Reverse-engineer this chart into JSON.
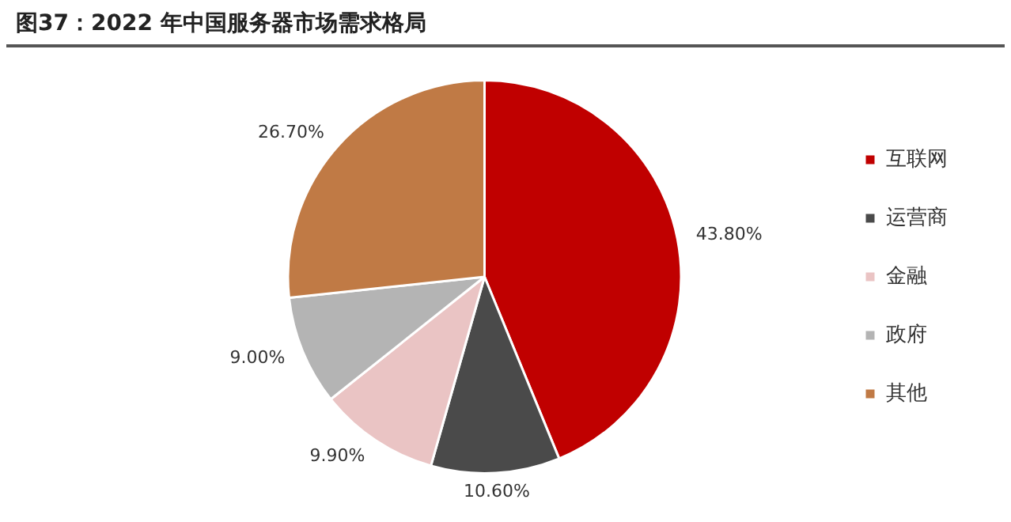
{
  "chart_data": {
    "type": "pie",
    "title": "图37：2022 年中国服务器市场需求格局",
    "categories": [
      "互联网",
      "运营商",
      "金融",
      "政府",
      "其他"
    ],
    "values": [
      43.8,
      10.6,
      9.9,
      9.0,
      26.7
    ],
    "colors": [
      "#c00000",
      "#4a4a4a",
      "#eac4c4",
      "#b4b4b4",
      "#c07a45"
    ],
    "value_labels": [
      "43.80%",
      "10.60%",
      "9.90%",
      "9.00%",
      "26.70%"
    ],
    "legend": "right"
  }
}
